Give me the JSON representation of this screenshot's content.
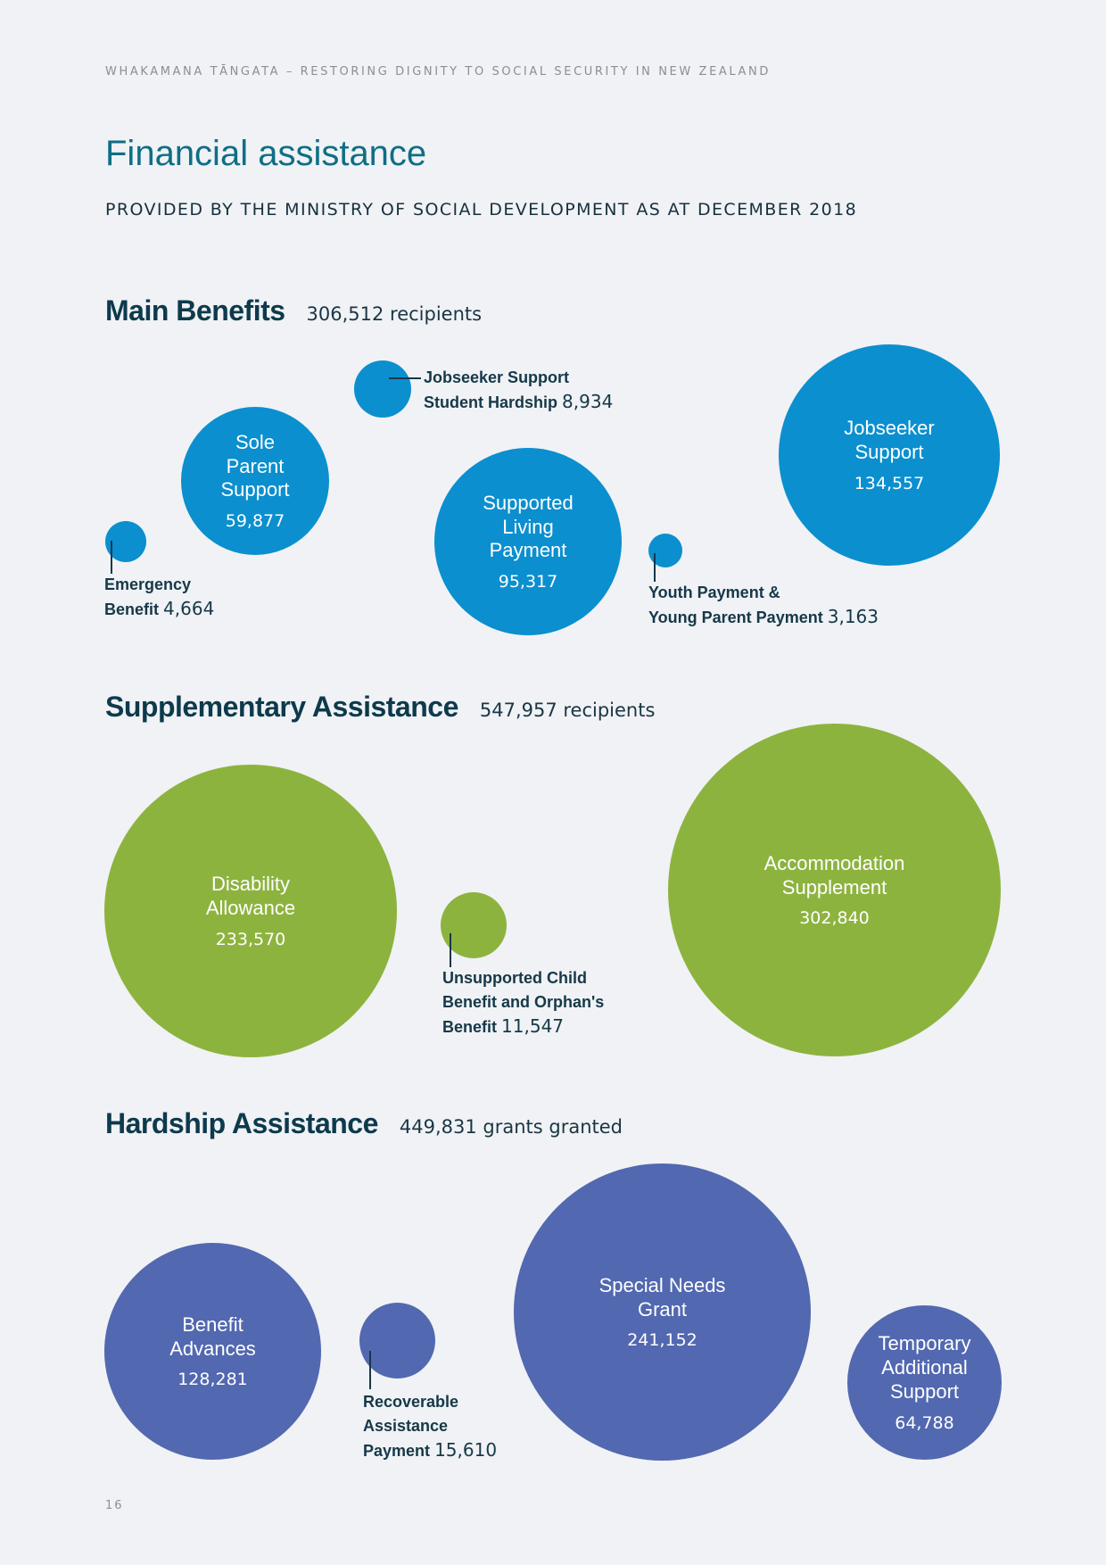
{
  "header": {
    "running_title": "WHAKAMANA TĀNGATA – RESTORING DIGNITY TO SOCIAL SECURITY IN NEW ZEALAND",
    "title": "Financial assistance",
    "subtitle": "PROVIDED BY THE MINISTRY OF SOCIAL DEVELOPMENT AS AT DECEMBER 2018"
  },
  "colors": {
    "main_benefits": "#0b8fcf",
    "supplementary": "#8db33f",
    "hardship": "#5268b0",
    "title": "#0f6e85"
  },
  "sections": {
    "main": {
      "title": "Main Benefits",
      "count": "306,512 recipients",
      "items": [
        {
          "name": "Sole\nParent\nSupport",
          "value": "59,877"
        },
        {
          "name": "Supported\nLiving\nPayment",
          "value": "95,317"
        },
        {
          "name": "Jobseeker\nSupport",
          "value": "134,557"
        },
        {
          "name": "Jobseeker Support\nStudent Hardship",
          "value": "8,934"
        },
        {
          "name": "Emergency\nBenefit",
          "value": "4,664"
        },
        {
          "name": "Youth Payment &\nYoung Parent Payment",
          "value": "3,163"
        }
      ]
    },
    "supplementary": {
      "title": "Supplementary Assistance",
      "count": "547,957 recipients",
      "items": [
        {
          "name": "Disability\nAllowance",
          "value": "233,570"
        },
        {
          "name": "Accommodation\nSupplement",
          "value": "302,840"
        },
        {
          "name": "Unsupported Child\nBenefit and Orphan's\nBenefit",
          "value": "11,547"
        }
      ]
    },
    "hardship": {
      "title": "Hardship Assistance",
      "count": "449,831 grants granted",
      "items": [
        {
          "name": "Benefit\nAdvances",
          "value": "128,281"
        },
        {
          "name": "Special Needs\nGrant",
          "value": "241,152"
        },
        {
          "name": "Temporary\nAdditional\nSupport",
          "value": "64,788"
        },
        {
          "name": "Recoverable\nAssistance\nPayment",
          "value": "15,610"
        }
      ]
    }
  },
  "footer": {
    "page_number": "16"
  }
}
